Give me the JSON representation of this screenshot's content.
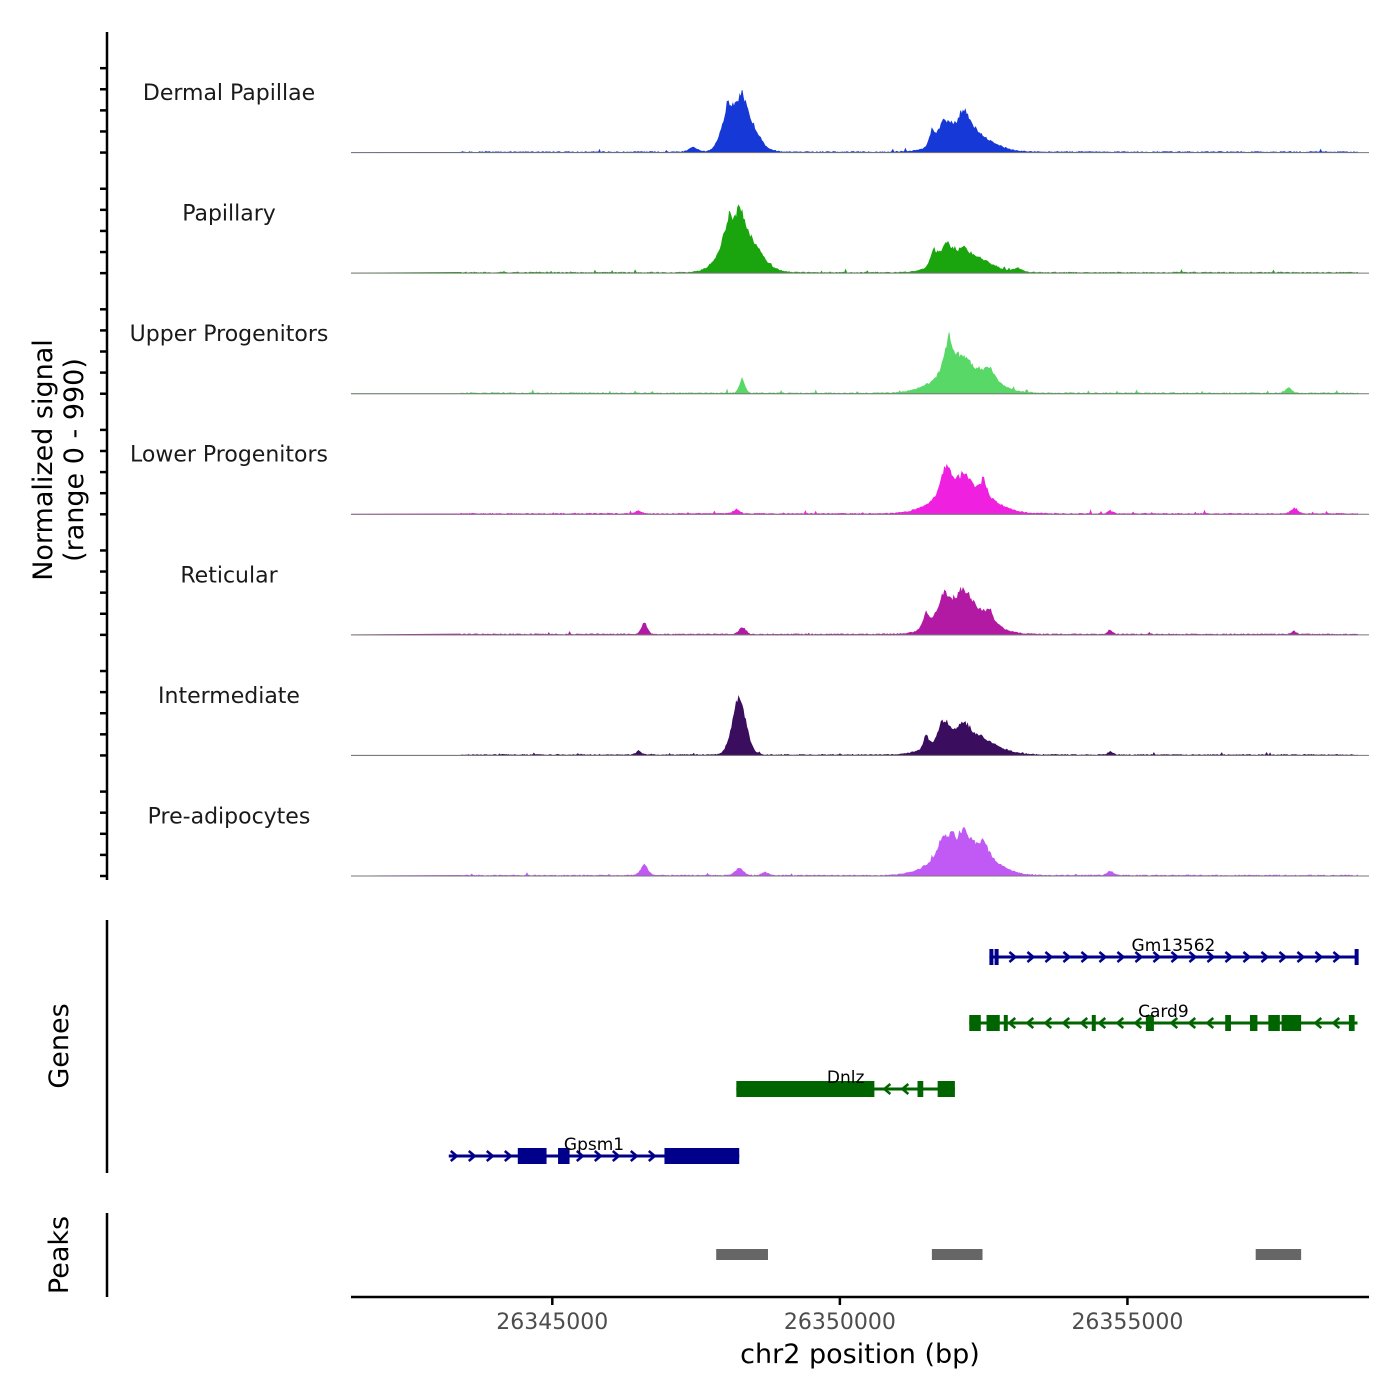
{
  "chart_data": {
    "type": "area",
    "title": "",
    "chromosome": "chr2",
    "xlabel": "chr2 position (bp)",
    "xlim": [
      26341500,
      26359200
    ],
    "xticks": [
      26345000,
      26350000,
      26355000
    ],
    "xtick_labels": [
      "26345000",
      "26350000",
      "26355000"
    ],
    "ylabel_line1": "Normalized signal",
    "ylabel_line2": "(range 0 - 990)",
    "ylim": [
      0,
      990
    ],
    "tracks": [
      {
        "name": "Dermal Papillae",
        "color": "#1638d6",
        "baseline": 120,
        "peaks": [
          [
            26348300,
            500,
            120,
            0.5
          ],
          [
            26348050,
            260,
            30,
            0.26
          ],
          [
            26352180,
            900,
            100,
            0.25
          ],
          [
            26352120,
            380,
            90,
            0.15
          ],
          [
            26351800,
            220,
            40,
            0.18
          ],
          [
            26351600,
            120,
            20,
            0.13
          ],
          [
            26347450,
            180,
            15,
            0.05
          ]
        ]
      },
      {
        "name": "Papillary",
        "color": "#1aa50f",
        "baseline": 120,
        "peaks": [
          [
            26348270,
            660,
            120,
            0.52
          ],
          [
            26348080,
            260,
            45,
            0.2
          ],
          [
            26352150,
            860,
            100,
            0.24
          ],
          [
            26351850,
            260,
            60,
            0.15
          ],
          [
            26351630,
            140,
            30,
            0.13
          ],
          [
            26353100,
            200,
            4,
            0.04
          ]
        ]
      },
      {
        "name": "Upper Progenitors",
        "color": "#58d866",
        "baseline": 120,
        "peaks": [
          [
            26352150,
            1000,
            200,
            0.32
          ],
          [
            26351900,
            220,
            80,
            0.3
          ],
          [
            26348300,
            120,
            40,
            0.13
          ],
          [
            26352600,
            240,
            40,
            0.1
          ],
          [
            26357800,
            140,
            50,
            0.05
          ]
        ]
      },
      {
        "name": "Lower Progenitors",
        "color": "#f020e0",
        "baseline": 120,
        "peaks": [
          [
            26352150,
            1000,
            200,
            0.35
          ],
          [
            26351850,
            220,
            110,
            0.22
          ],
          [
            26352500,
            140,
            45,
            0.11
          ],
          [
            26357900,
            150,
            30,
            0.05
          ],
          [
            26346500,
            140,
            30,
            0.03
          ],
          [
            26348200,
            150,
            30,
            0.04
          ],
          [
            26354700,
            110,
            25,
            0.03
          ]
        ]
      },
      {
        "name": "Reticular",
        "color": "#b21aa3",
        "baseline": 120,
        "peaks": [
          [
            26352150,
            880,
            200,
            0.4
          ],
          [
            26351800,
            250,
            120,
            0.17
          ],
          [
            26351500,
            140,
            60,
            0.12
          ],
          [
            26352600,
            150,
            60,
            0.08
          ],
          [
            26346600,
            130,
            80,
            0.1
          ],
          [
            26348300,
            150,
            60,
            0.06
          ],
          [
            26354700,
            110,
            40,
            0.04
          ],
          [
            26357900,
            100,
            20,
            0.03
          ]
        ]
      },
      {
        "name": "Intermediate",
        "color": "#3a0d5e",
        "baseline": 120,
        "peaks": [
          [
            26352150,
            1000,
            220,
            0.28
          ],
          [
            26351800,
            220,
            140,
            0.15
          ],
          [
            26351500,
            120,
            60,
            0.1
          ],
          [
            26348250,
            300,
            210,
            0.48
          ],
          [
            26346500,
            110,
            20,
            0.04
          ],
          [
            26354700,
            110,
            25,
            0.03
          ]
        ]
      },
      {
        "name": "Pre-adipocytes",
        "color": "#c15af5",
        "baseline": 120,
        "peaks": [
          [
            26352150,
            1000,
            200,
            0.4
          ],
          [
            26351800,
            240,
            120,
            0.14
          ],
          [
            26351950,
            80,
            40,
            0.1
          ],
          [
            26352500,
            180,
            80,
            0.09
          ],
          [
            26346600,
            170,
            90,
            0.09
          ],
          [
            26348250,
            200,
            90,
            0.06
          ],
          [
            26348700,
            140,
            60,
            0.03
          ],
          [
            26354700,
            140,
            40,
            0.04
          ]
        ]
      }
    ],
    "genes_label": "Genes",
    "genes": [
      {
        "name": "Gm13562",
        "strand": "+",
        "color": "#00008b",
        "start": 26352600,
        "end": 26359000,
        "row": 0,
        "exons": [
          [
            26352600,
            26352620
          ],
          [
            26352690,
            26352760
          ],
          [
            26358950,
            26359000
          ]
        ]
      },
      {
        "name": "Card9",
        "strand": "-",
        "color": "#006400",
        "start": 26352250,
        "end": 26359000,
        "row": 1,
        "exons": [
          [
            26352250,
            26352450
          ],
          [
            26352550,
            26352780
          ],
          [
            26352850,
            26352870
          ],
          [
            26354380,
            26354400
          ],
          [
            26355320,
            26355460
          ],
          [
            26356700,
            26356800
          ],
          [
            26357130,
            26357260
          ],
          [
            26357450,
            26357650
          ],
          [
            26357680,
            26358020
          ],
          [
            26358850,
            26358950
          ]
        ]
      },
      {
        "name": "Dnlz",
        "strand": "-",
        "color": "#006400",
        "start": 26348200,
        "end": 26352000,
        "row": 2,
        "exons": [
          [
            26348200,
            26350600
          ],
          [
            26351350,
            26351450
          ],
          [
            26351700,
            26352000
          ]
        ]
      },
      {
        "name": "Gpsm1",
        "strand": "+",
        "color": "#00008b",
        "start": 26343200,
        "end": 26348250,
        "row": 3,
        "exons": [
          [
            26344400,
            26344900
          ],
          [
            26345100,
            26345300
          ],
          [
            26346950,
            26348250
          ]
        ]
      }
    ],
    "peaks_label": "Peaks",
    "peaks": [
      [
        26347850,
        26348750
      ],
      [
        26351600,
        26352480
      ],
      [
        26357230,
        26358020
      ]
    ]
  }
}
